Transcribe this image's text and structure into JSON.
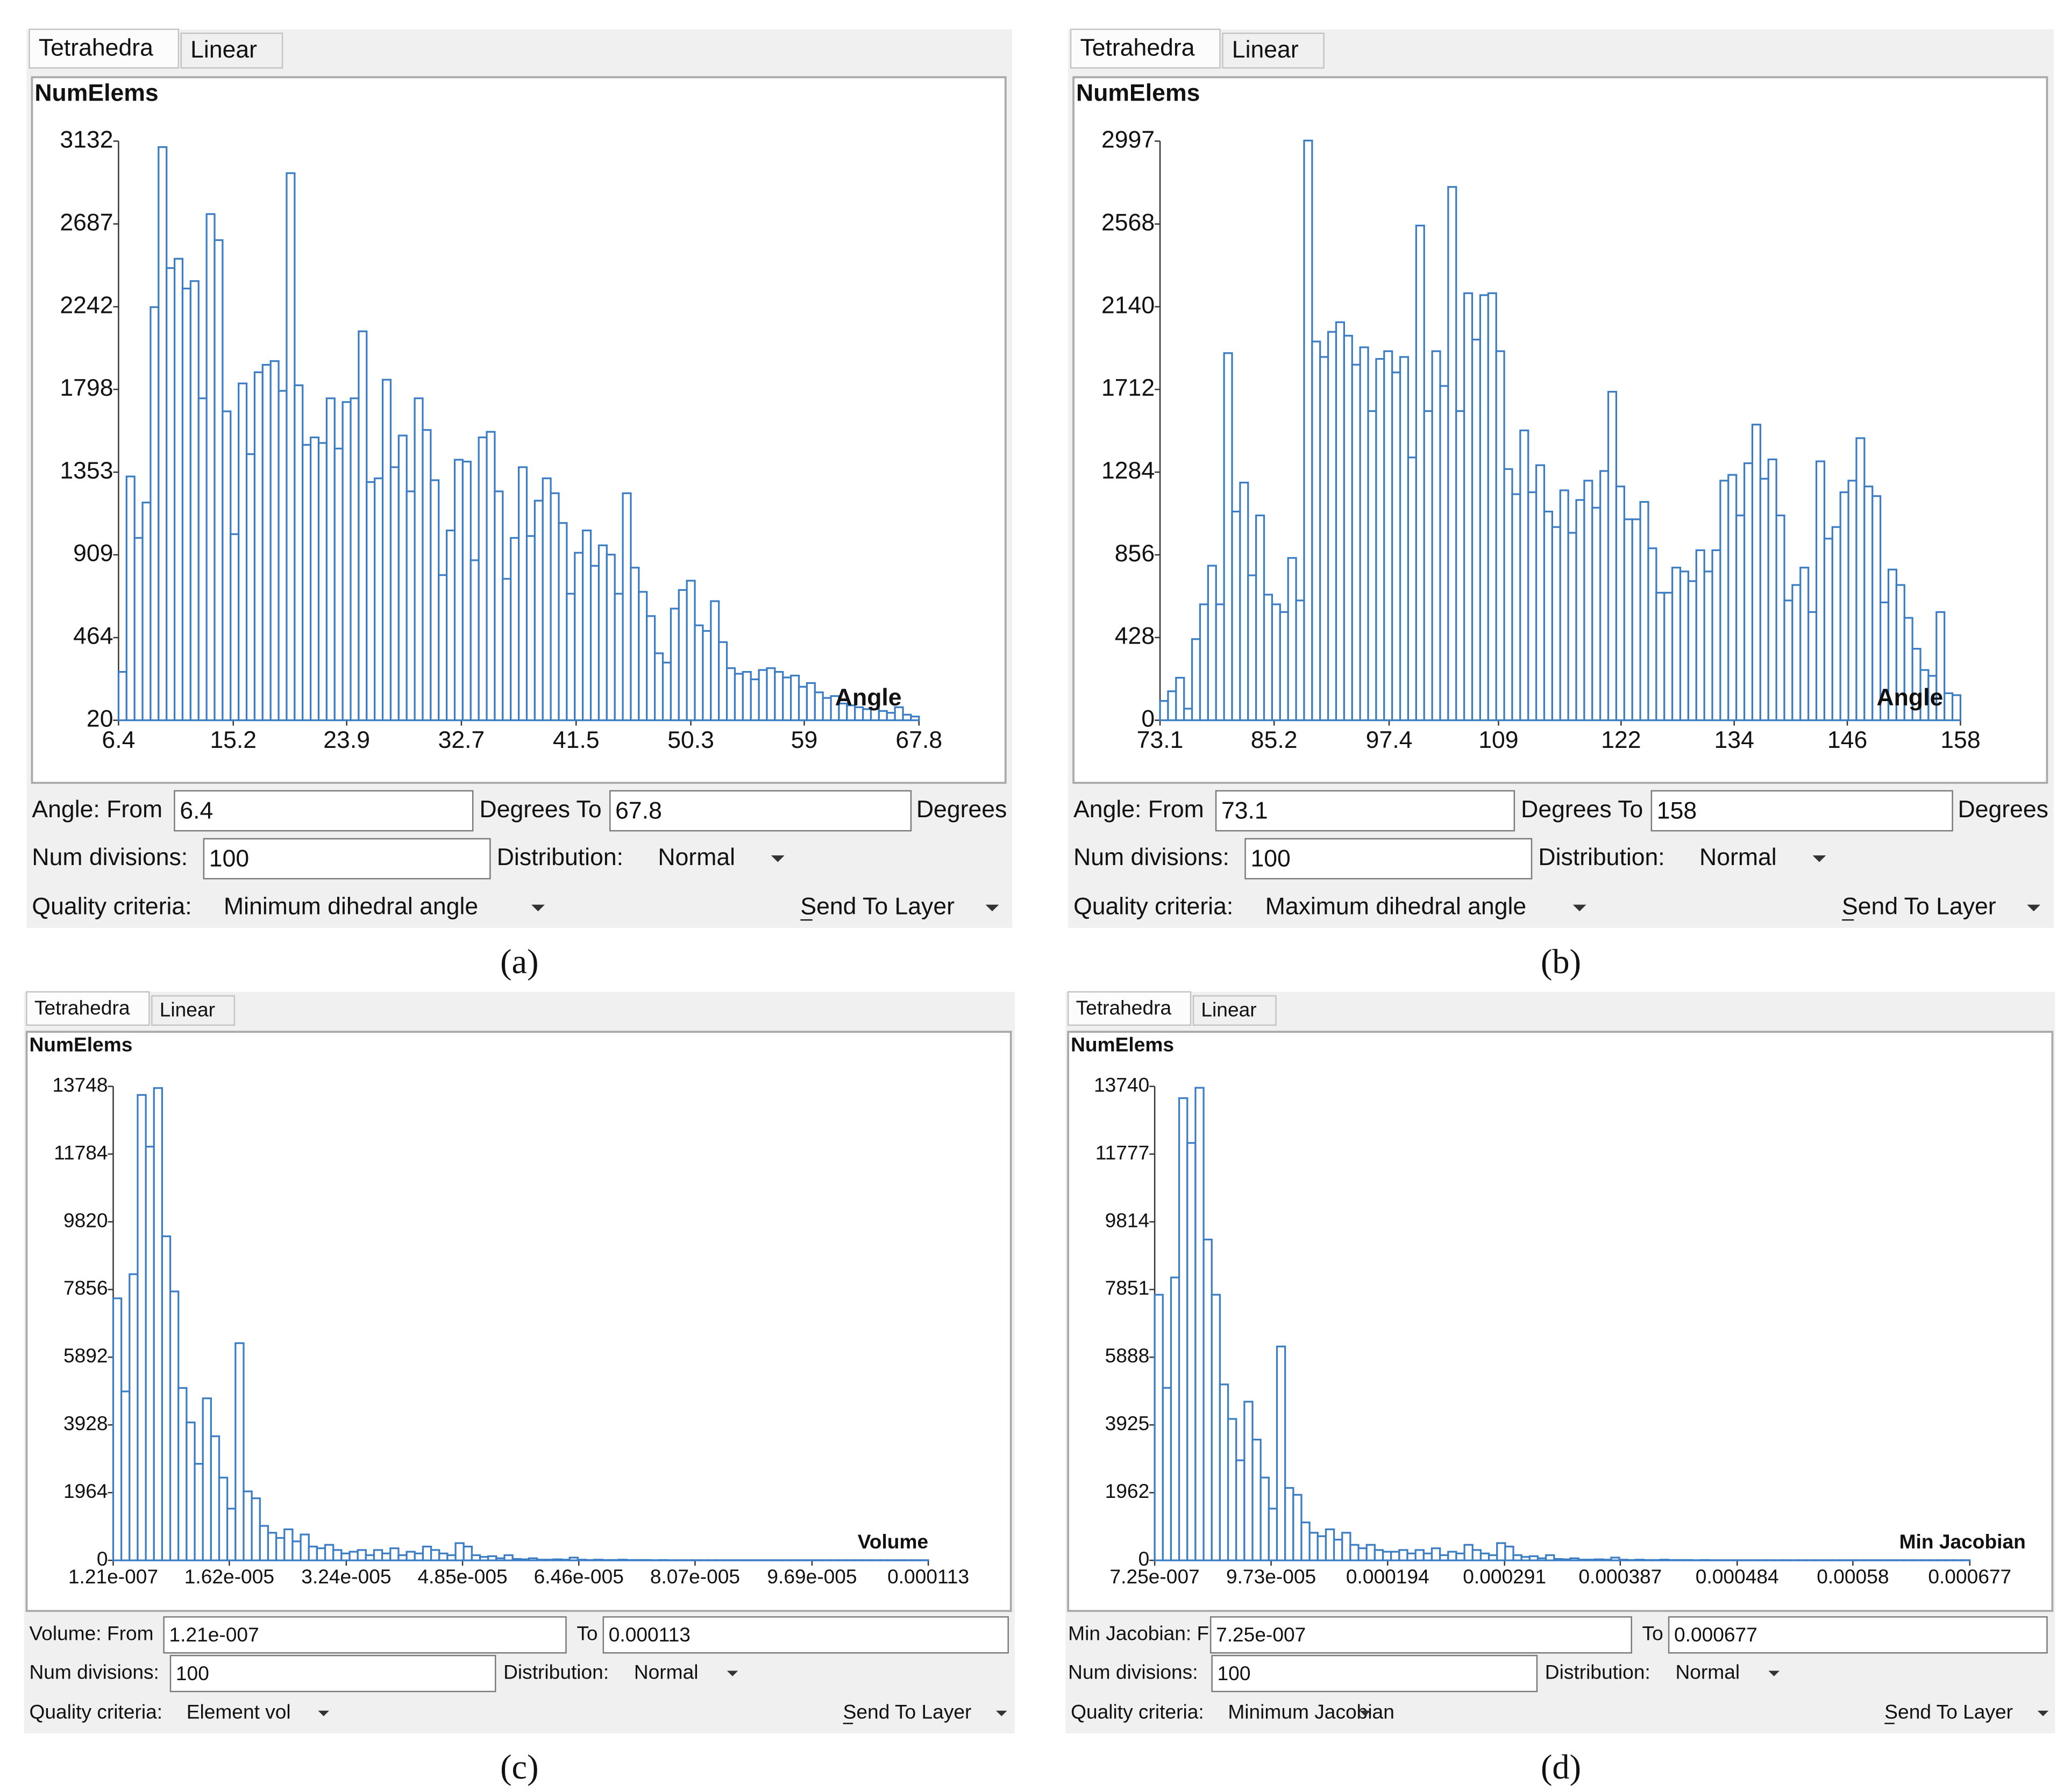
{
  "chart_data": [
    {
      "type": "histogram",
      "y_label": "NumElems",
      "x_label": "Angle",
      "color": "#3b7dc4",
      "xlim": [
        6.4,
        67.8
      ],
      "xticks": [
        6.4,
        15.2,
        23.9,
        32.7,
        41.5,
        50.3,
        59,
        67.8
      ],
      "ylim": [
        20,
        3132
      ],
      "yticks": [
        20,
        464,
        909,
        1353,
        1798,
        2242,
        2687,
        3132
      ],
      "bins": [
        6.4,
        7.014,
        7.628,
        8.242,
        8.856,
        9.47,
        10.084,
        10.698,
        11.312,
        11.926,
        12.54,
        13.154,
        13.768,
        14.382,
        14.996,
        15.61,
        16.224,
        16.838,
        17.452,
        18.066,
        18.68,
        19.294,
        19.908,
        20.522,
        21.136,
        21.75,
        22.364,
        22.978,
        23.592,
        24.206,
        24.82,
        25.434,
        26.048,
        26.662,
        27.276,
        27.89,
        28.504,
        29.118,
        29.732,
        30.346,
        30.96,
        31.574,
        32.188,
        32.802,
        33.416,
        34.03,
        34.644,
        35.258,
        35.872,
        36.486,
        37.1,
        37.714,
        38.328,
        38.942,
        39.556,
        40.17,
        40.784,
        41.398,
        42.012,
        42.626,
        43.24,
        43.854,
        44.468,
        45.082,
        45.696,
        46.31,
        46.924,
        47.538,
        48.152,
        48.766,
        49.38,
        49.994,
        50.608,
        51.222,
        51.836,
        52.45,
        53.064,
        53.678,
        54.292,
        54.906,
        55.52,
        56.134,
        56.748,
        57.362,
        57.976,
        58.59,
        59.204,
        59.818,
        60.432,
        61.046,
        61.66,
        62.274,
        62.888,
        63.502,
        64.116,
        64.73,
        65.344,
        65.958,
        66.572,
        67.186,
        67.8
      ],
      "values": [
        280,
        1330,
        1000,
        1190,
        2240,
        3100,
        2450,
        2500,
        2340,
        2380,
        1750,
        2740,
        2600,
        1680,
        1020,
        1830,
        1450,
        1890,
        1930,
        1950,
        1790,
        2960,
        1820,
        1500,
        1540,
        1510,
        1750,
        1480,
        1730,
        1750,
        2110,
        1300,
        1320,
        1850,
        1380,
        1550,
        1250,
        1750,
        1580,
        1310,
        800,
        1040,
        1420,
        1410,
        880,
        1540,
        1570,
        1250,
        780,
        1000,
        1380,
        1010,
        1200,
        1320,
        1240,
        1080,
        700,
        920,
        1040,
        850,
        960,
        910,
        700,
        1240,
        840,
        710,
        580,
        380,
        330,
        620,
        720,
        770,
        530,
        500,
        660,
        440,
        300,
        270,
        280,
        240,
        290,
        300,
        280,
        250,
        260,
        200,
        220,
        170,
        140,
        150,
        110,
        100,
        90,
        80,
        80,
        70,
        60,
        90,
        50,
        40
      ]
    },
    {
      "type": "histogram",
      "y_label": "NumElems",
      "x_label": "Angle",
      "color": "#3b7dc4",
      "xlim": [
        73.1,
        158
      ],
      "xticks": [
        73.1,
        85.2,
        97.4,
        109,
        122,
        134,
        146,
        158
      ],
      "ylim": [
        0,
        2997
      ],
      "yticks": [
        0,
        428,
        856,
        1284,
        1712,
        2140,
        2568,
        2997
      ],
      "bins": [
        73.1,
        73.949,
        74.798,
        75.647,
        76.496,
        77.345,
        78.194,
        79.043,
        79.892,
        80.741,
        81.59,
        82.439,
        83.288,
        84.137,
        84.986,
        85.835,
        86.684,
        87.533,
        88.382,
        89.231,
        90.08,
        90.929,
        91.778,
        92.627,
        93.476,
        94.325,
        95.174,
        96.023,
        96.872,
        97.721,
        98.57,
        99.419,
        100.268,
        101.117,
        101.966,
        102.815,
        103.664,
        104.513,
        105.362,
        106.211,
        107.06,
        107.909,
        108.758,
        109.607,
        110.456,
        111.305,
        112.154,
        113.003,
        113.852,
        114.701,
        115.55,
        116.399,
        117.248,
        118.097,
        118.946,
        119.795,
        120.644,
        121.493,
        122.342,
        123.191,
        124.04,
        124.889,
        125.738,
        126.587,
        127.436,
        128.285,
        129.134,
        129.983,
        130.832,
        131.681,
        132.53,
        133.379,
        134.228,
        135.077,
        135.926,
        136.775,
        137.624,
        138.473,
        139.322,
        140.171,
        141.02,
        141.869,
        142.718,
        143.567,
        144.416,
        145.265,
        146.114,
        146.963,
        147.812,
        148.661,
        149.51,
        150.359,
        151.208,
        152.057,
        152.906,
        153.755,
        154.604,
        155.453,
        156.302,
        157.151,
        158
      ],
      "values": [
        100,
        150,
        220,
        60,
        420,
        600,
        800,
        600,
        1900,
        1080,
        1230,
        750,
        1060,
        650,
        600,
        560,
        840,
        620,
        3000,
        1960,
        1880,
        2010,
        2060,
        1990,
        1840,
        1930,
        1600,
        1870,
        1910,
        1800,
        1880,
        1360,
        2560,
        1600,
        1910,
        1730,
        2760,
        1600,
        2210,
        1970,
        2200,
        2210,
        1910,
        1300,
        1170,
        1500,
        1180,
        1320,
        1080,
        1000,
        1190,
        970,
        1140,
        1240,
        1100,
        1290,
        1700,
        1210,
        1040,
        1040,
        1130,
        890,
        660,
        660,
        790,
        770,
        720,
        880,
        770,
        880,
        1240,
        1270,
        1060,
        1330,
        1530,
        1250,
        1350,
        1060,
        620,
        700,
        790,
        560,
        1340,
        940,
        1000,
        1180,
        1240,
        1460,
        1210,
        1160,
        610,
        780,
        700,
        530,
        370,
        260,
        230,
        560,
        140,
        130
      ]
    },
    {
      "type": "histogram",
      "y_label": "NumElems",
      "x_label": "Volume",
      "color": "#3b7dc4",
      "xlim": [
        1.21e-07,
        0.000113
      ],
      "xticks": [
        {
          "value": 1.21e-07,
          "label": "1.21e-007"
        },
        {
          "value": 1.62e-05,
          "label": "1.62e-005"
        },
        {
          "value": 3.24e-05,
          "label": "3.24e-005"
        },
        {
          "value": 4.85e-05,
          "label": "4.85e-005"
        },
        {
          "value": 6.46e-05,
          "label": "6.46e-005"
        },
        {
          "value": 8.07e-05,
          "label": "8.07e-005"
        },
        {
          "value": 9.69e-05,
          "label": "9.69e-005"
        },
        0.000113
      ],
      "ylim": [
        0,
        13748
      ],
      "yticks": [
        0,
        1964,
        3928,
        5892,
        7856,
        9820,
        11784,
        13748
      ],
      "bins": [
        1.21e-07,
        1.25e-06,
        2.379e-06,
        3.507e-06,
        4.636e-06,
        5.765e-06,
        6.894e-06,
        8.023e-06,
        9.151e-06,
        1.028e-05,
        1.1409e-05,
        1.2538e-05,
        1.3666e-05,
        1.4795e-05,
        1.5924e-05,
        1.7053e-05,
        1.8182e-05,
        1.931e-05,
        2.0439e-05,
        2.1568e-05,
        2.2697e-05,
        2.3826e-05,
        2.4954e-05,
        2.6083e-05,
        2.7212e-05,
        2.8341e-05,
        2.947e-05,
        3.0598e-05,
        3.1727e-05,
        3.2856e-05,
        3.3985e-05,
        3.5113e-05,
        3.6242e-05,
        3.7371e-05,
        3.85e-05,
        3.9629e-05,
        4.0757e-05,
        4.1886e-05,
        4.3015e-05,
        4.4144e-05,
        4.5273e-05,
        4.6401e-05,
        4.753e-05,
        4.8659e-05,
        4.9788e-05,
        5.0917e-05,
        5.2045e-05,
        5.3174e-05,
        5.4303e-05,
        5.5432e-05,
        5.6561e-05,
        5.7689e-05,
        5.8818e-05,
        5.9947e-05,
        6.1076e-05,
        6.2205e-05,
        6.3333e-05,
        6.4462e-05,
        6.5591e-05,
        6.672e-05,
        6.7849e-05,
        6.8977e-05,
        7.0106e-05,
        7.1235e-05,
        7.2364e-05,
        7.3493e-05,
        7.4621e-05,
        7.575e-05,
        7.6879e-05,
        7.8008e-05,
        7.9137e-05,
        8.0265e-05,
        8.1394e-05,
        8.2523e-05,
        8.3652e-05,
        8.4781e-05,
        8.5909e-05,
        8.7038e-05,
        8.8167e-05,
        8.9296e-05,
        9.0424e-05,
        9.1553e-05,
        9.2682e-05,
        9.3811e-05,
        9.494e-05,
        9.6068e-05,
        9.7197e-05,
        9.8326e-05,
        9.9455e-05,
        0.000100584,
        0.000101712,
        0.000102841,
        0.00010397,
        0.000105099,
        0.000106228,
        0.000107356,
        0.000108485,
        0.000109614,
        0.000110743,
        0.000111872,
        0.000113
      ],
      "values": [
        7600,
        4900,
        8300,
        13500,
        12000,
        13700,
        9400,
        7800,
        5000,
        4000,
        2800,
        4700,
        3600,
        2400,
        1500,
        6300,
        2000,
        1800,
        1000,
        800,
        650,
        900,
        550,
        750,
        400,
        350,
        450,
        300,
        200,
        250,
        300,
        150,
        300,
        200,
        350,
        150,
        250,
        200,
        400,
        300,
        200,
        150,
        500,
        400,
        150,
        100,
        120,
        60,
        150,
        40,
        30,
        60,
        20,
        20,
        30,
        20,
        80,
        20,
        10,
        20,
        10,
        10,
        20,
        10,
        10,
        10,
        5,
        10,
        5,
        5,
        5,
        5,
        5,
        5,
        5,
        5,
        5,
        5,
        5,
        5,
        5,
        5,
        5,
        5,
        5,
        5,
        5,
        5,
        5,
        5,
        5,
        5,
        5,
        5,
        5,
        5,
        5,
        5,
        5,
        5
      ]
    },
    {
      "type": "histogram",
      "y_label": "NumElems",
      "x_label": "Min Jacobian",
      "color": "#3b7dc4",
      "xlim": [
        7.25e-07,
        0.000677
      ],
      "xticks": [
        {
          "value": 7.25e-07,
          "label": "7.25e-007"
        },
        {
          "value": 9.73e-05,
          "label": "9.73e-005"
        },
        0.000194,
        0.000291,
        0.000387,
        0.000484,
        0.00058,
        0.000677
      ],
      "ylim": [
        0,
        13740
      ],
      "yticks": [
        0,
        1962,
        3925,
        5888,
        7851,
        9814,
        11777,
        13740
      ],
      "bins": [
        7.25e-07,
        7.488e-06,
        1.4251e-05,
        2.1013e-05,
        2.7776e-05,
        3.4539e-05,
        4.1302e-05,
        4.8064e-05,
        5.4827e-05,
        6.159e-05,
        6.8353e-05,
        7.5115e-05,
        8.1878e-05,
        8.8641e-05,
        9.5404e-05,
        0.000102166,
        0.000108929,
        0.000115692,
        0.000122455,
        0.000129217,
        0.00013598,
        0.000142743,
        0.000149506,
        0.000156268,
        0.000163031,
        0.000169794,
        0.000176557,
        0.000183319,
        0.000190082,
        0.000196845,
        0.000203608,
        0.00021037,
        0.000217133,
        0.000223896,
        0.000230659,
        0.000237421,
        0.000244184,
        0.000250947,
        0.00025771,
        0.000264472,
        0.000271235,
        0.000277998,
        0.000284761,
        0.000291523,
        0.000298286,
        0.000305049,
        0.000311812,
        0.000318574,
        0.000325337,
        0.0003321,
        0.000338863,
        0.000345625,
        0.000352388,
        0.000359151,
        0.000365914,
        0.000372676,
        0.000379439,
        0.000386202,
        0.000392965,
        0.000399727,
        0.00040649,
        0.000413253,
        0.000420016,
        0.000426778,
        0.000433541,
        0.000440304,
        0.000447067,
        0.000453829,
        0.000460592,
        0.000467355,
        0.000474118,
        0.00048088,
        0.000487643,
        0.000494406,
        0.000501169,
        0.000507931,
        0.000514694,
        0.000521457,
        0.00052822,
        0.000534982,
        0.000541745,
        0.000548508,
        0.000555271,
        0.000562033,
        0.000568796,
        0.000575559,
        0.000582322,
        0.000589084,
        0.000595847,
        0.00060261,
        0.000609373,
        0.000616135,
        0.000622898,
        0.000629661,
        0.000636424,
        0.000643186,
        0.000649949,
        0.000656712,
        0.000663475,
        0.000670237,
        0.000677
      ],
      "values": [
        7700,
        5000,
        8200,
        13400,
        12100,
        13700,
        9300,
        7700,
        5100,
        4100,
        2900,
        4600,
        3500,
        2400,
        1500,
        6200,
        2100,
        1900,
        1100,
        800,
        700,
        900,
        600,
        800,
        450,
        350,
        450,
        300,
        250,
        250,
        300,
        200,
        300,
        200,
        350,
        150,
        250,
        200,
        450,
        300,
        200,
        150,
        500,
        400,
        150,
        100,
        120,
        60,
        150,
        40,
        30,
        60,
        20,
        20,
        30,
        20,
        80,
        20,
        10,
        20,
        10,
        10,
        20,
        10,
        10,
        10,
        5,
        10,
        5,
        5,
        5,
        5,
        5,
        5,
        5,
        5,
        5,
        5,
        5,
        5,
        5,
        5,
        5,
        5,
        5,
        5,
        5,
        5,
        5,
        5,
        5,
        5,
        5,
        5,
        5,
        5,
        5,
        5,
        5,
        5
      ]
    }
  ],
  "panels": [
    {
      "tabs": [
        "Tetrahedra",
        "Linear"
      ],
      "from_label": "Angle: From",
      "from_value": "6.4",
      "to_label": "Degrees To",
      "to_value": "67.8",
      "unit": "Degrees",
      "divisions_label": "Num divisions:",
      "divisions_value": "100",
      "distribution_label": "Distribution:",
      "distribution_value": "Normal",
      "criteria_label": "Quality criteria:",
      "criteria_value": "Minimum dihedral angle",
      "send": "Send To Layer",
      "caption": "(a)"
    },
    {
      "tabs": [
        "Tetrahedra",
        "Linear"
      ],
      "from_label": "Angle: From",
      "from_value": "73.1",
      "to_label": "Degrees To",
      "to_value": "158",
      "unit": "Degrees",
      "divisions_label": "Num divisions:",
      "divisions_value": "100",
      "distribution_label": "Distribution:",
      "distribution_value": "Normal",
      "criteria_label": "Quality criteria:",
      "criteria_value": "Maximum dihedral angle",
      "send": "Send To Layer",
      "caption": "(b)"
    },
    {
      "tabs": [
        "Tetrahedra",
        "Linear"
      ],
      "from_label": "Volume: From",
      "from_value": "1.21e-007",
      "to_label": "To",
      "to_value": "0.000113",
      "divisions_label": "Num divisions:",
      "divisions_value": "100",
      "distribution_label": "Distribution:",
      "distribution_value": "Normal",
      "criteria_label": "Quality criteria:",
      "criteria_value": "Element vol",
      "send": "Send To Layer",
      "caption": "(c)"
    },
    {
      "tabs": [
        "Tetrahedra",
        "Linear"
      ],
      "from_label": "Min Jacobian: From",
      "from_value": "7.25e-007",
      "to_label": "To",
      "to_value": "0.000677",
      "divisions_label": "Num divisions:",
      "divisions_value": "100",
      "distribution_label": "Distribution:",
      "distribution_value": "Normal",
      "criteria_label": "Quality criteria:",
      "criteria_value": "Minimum Jacobian",
      "send": "Send To Layer",
      "caption": "(d)"
    }
  ]
}
